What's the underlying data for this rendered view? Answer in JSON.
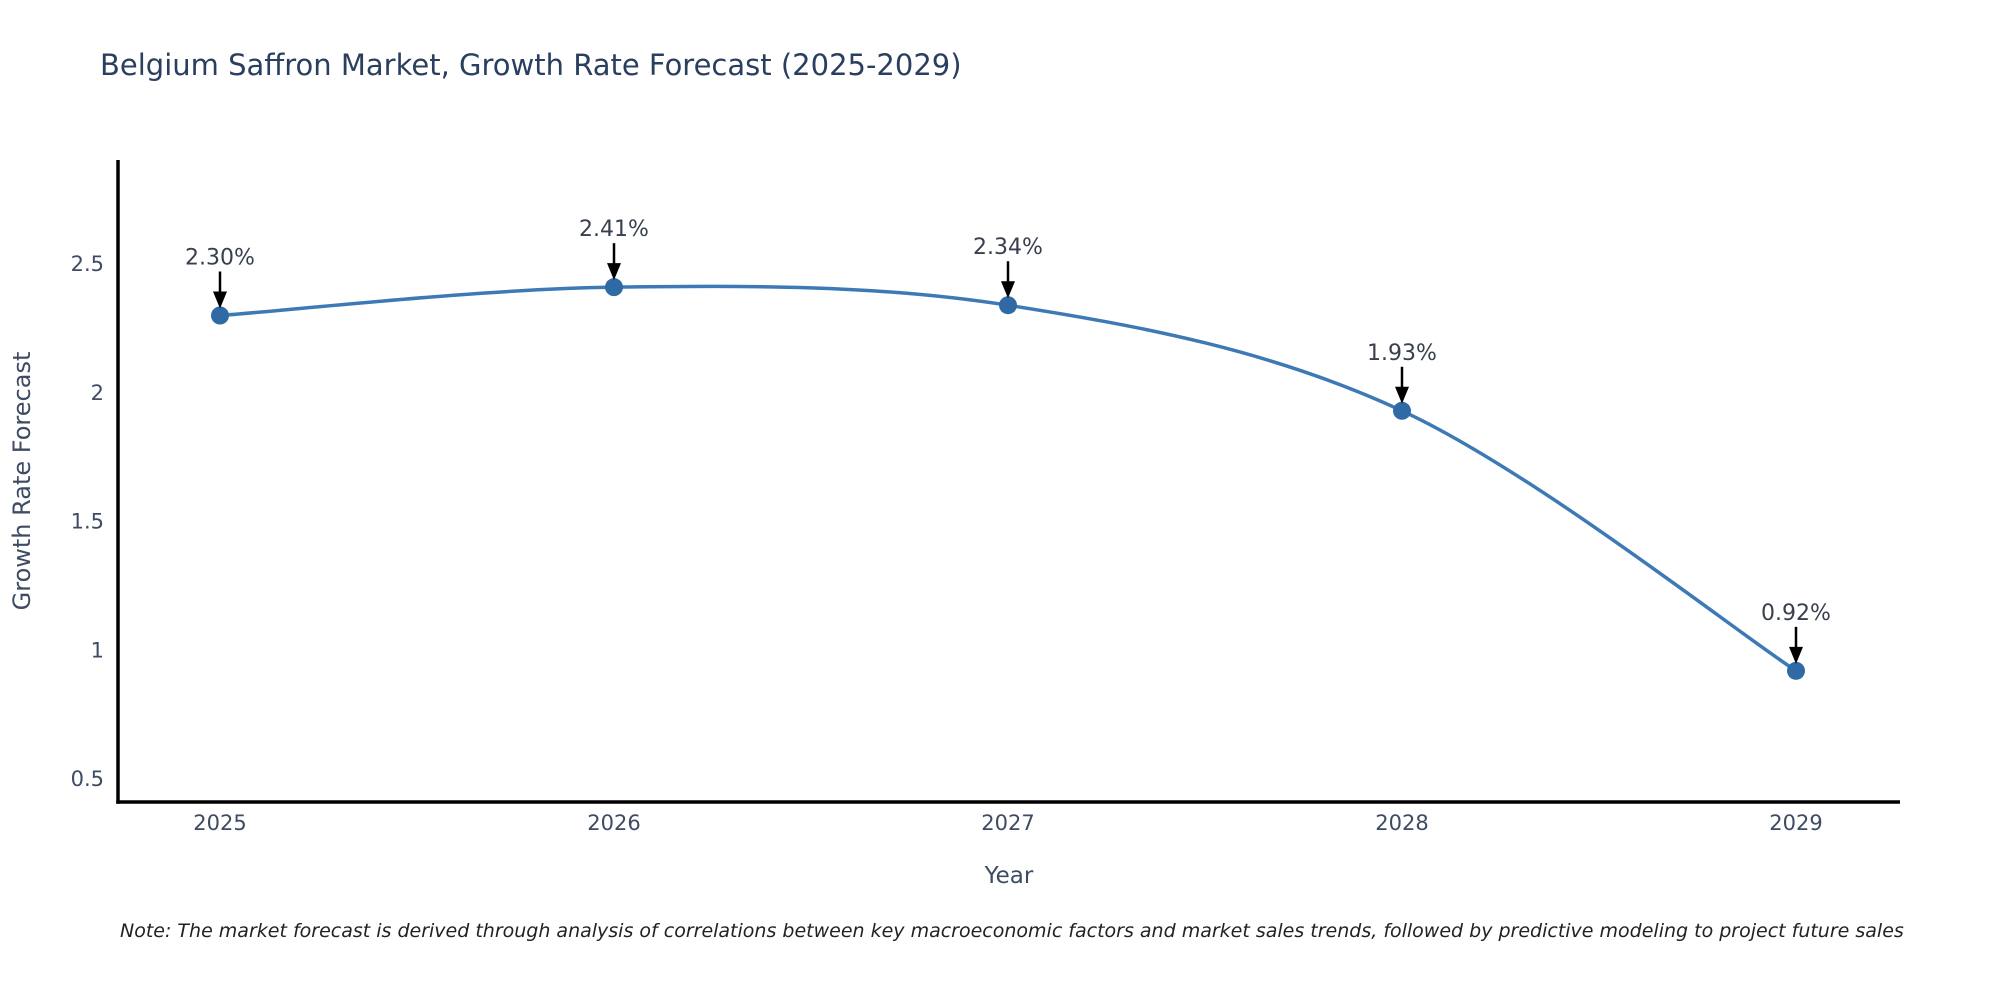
{
  "title": "Belgium Saffron Market, Growth Rate Forecast (2025-2029)",
  "note": "Note: The market forecast is derived through analysis of correlations between key macroeconomic factors and market sales trends, followed by predictive modeling to project future sales",
  "chart_data": {
    "type": "line",
    "line_shape": "spline",
    "title": "Belgium Saffron Market, Growth Rate Forecast (2025-2029)",
    "xlabel": "Year",
    "ylabel": "Growth Rate Forecast",
    "x": [
      2025,
      2026,
      2027,
      2028,
      2029
    ],
    "y": [
      2.3,
      2.41,
      2.34,
      1.93,
      0.92
    ],
    "point_labels": [
      "2.30%",
      "2.41%",
      "2.34%",
      "1.93%",
      "0.92%"
    ],
    "xtick_labels": [
      "2025",
      "2026",
      "2027",
      "2028",
      "2029"
    ],
    "ytick_labels": [
      "0.5",
      "1",
      "1.5",
      "2",
      "2.5"
    ],
    "yticks": [
      0.5,
      1,
      1.5,
      2,
      2.5
    ],
    "ylim": [
      0.41,
      2.9
    ],
    "grid": false,
    "legend": "none",
    "markers": true,
    "annotations_arrow": "down",
    "colors": {
      "line": "#3d7ab5",
      "marker": "#2f6aa5",
      "axis_line": "#000000",
      "title_text": "#2a3f5f",
      "tick_text": "#3d4c63",
      "annotation_text": "#38404e",
      "arrow": "#000000",
      "note_text": "#222222",
      "background": "#ffffff"
    }
  }
}
